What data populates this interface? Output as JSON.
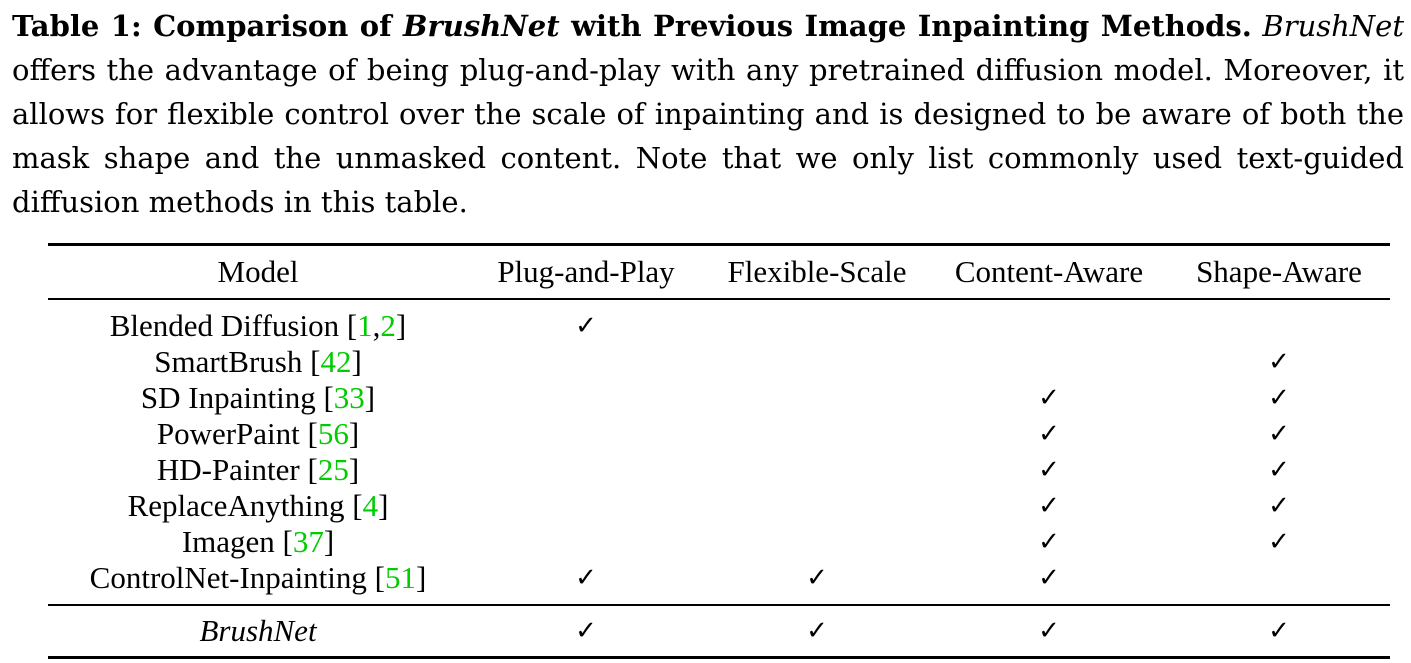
{
  "caption": {
    "label": "Table 1:",
    "title_prefix": "Comparison of ",
    "title_method": "BrushNet",
    "title_suffix": " with Previous Image Inpainting Methods.",
    "body_method": "BrushNet",
    "body_text": " offers the advantage of being plug-and-play with any pretrained diffusion model. Moreover, it allows for flexible control over the scale of inpainting and is designed to be aware of both the mask shape and the unmasked content. Note that we only list commonly used text-guided diffusion methods in this table."
  },
  "table": {
    "headers": [
      "Model",
      "Plug-and-Play",
      "Flexible-Scale",
      "Content-Aware",
      "Shape-Aware"
    ],
    "check_symbol": "✓",
    "rows": [
      {
        "name": "Blended Diffusion",
        "refs": [
          "1",
          "2"
        ],
        "checks": [
          true,
          false,
          false,
          false
        ]
      },
      {
        "name": "SmartBrush",
        "refs": [
          "42"
        ],
        "checks": [
          false,
          false,
          false,
          true
        ]
      },
      {
        "name": "SD Inpainting",
        "refs": [
          "33"
        ],
        "checks": [
          false,
          false,
          true,
          true
        ]
      },
      {
        "name": "PowerPaint",
        "refs": [
          "56"
        ],
        "checks": [
          false,
          false,
          true,
          true
        ]
      },
      {
        "name": "HD-Painter",
        "refs": [
          "25"
        ],
        "checks": [
          false,
          false,
          true,
          true
        ]
      },
      {
        "name": "ReplaceAnything",
        "refs": [
          "4"
        ],
        "checks": [
          false,
          false,
          true,
          true
        ]
      },
      {
        "name": "Imagen",
        "refs": [
          "37"
        ],
        "checks": [
          false,
          false,
          true,
          true
        ]
      },
      {
        "name": "ControlNet-Inpainting",
        "refs": [
          "51"
        ],
        "checks": [
          true,
          true,
          true,
          false
        ]
      }
    ],
    "ours": {
      "name": "BrushNet",
      "checks": [
        true,
        true,
        true,
        true
      ]
    }
  },
  "colors": {
    "citation": "#00cc00",
    "text": "#000000",
    "background": "#ffffff"
  }
}
